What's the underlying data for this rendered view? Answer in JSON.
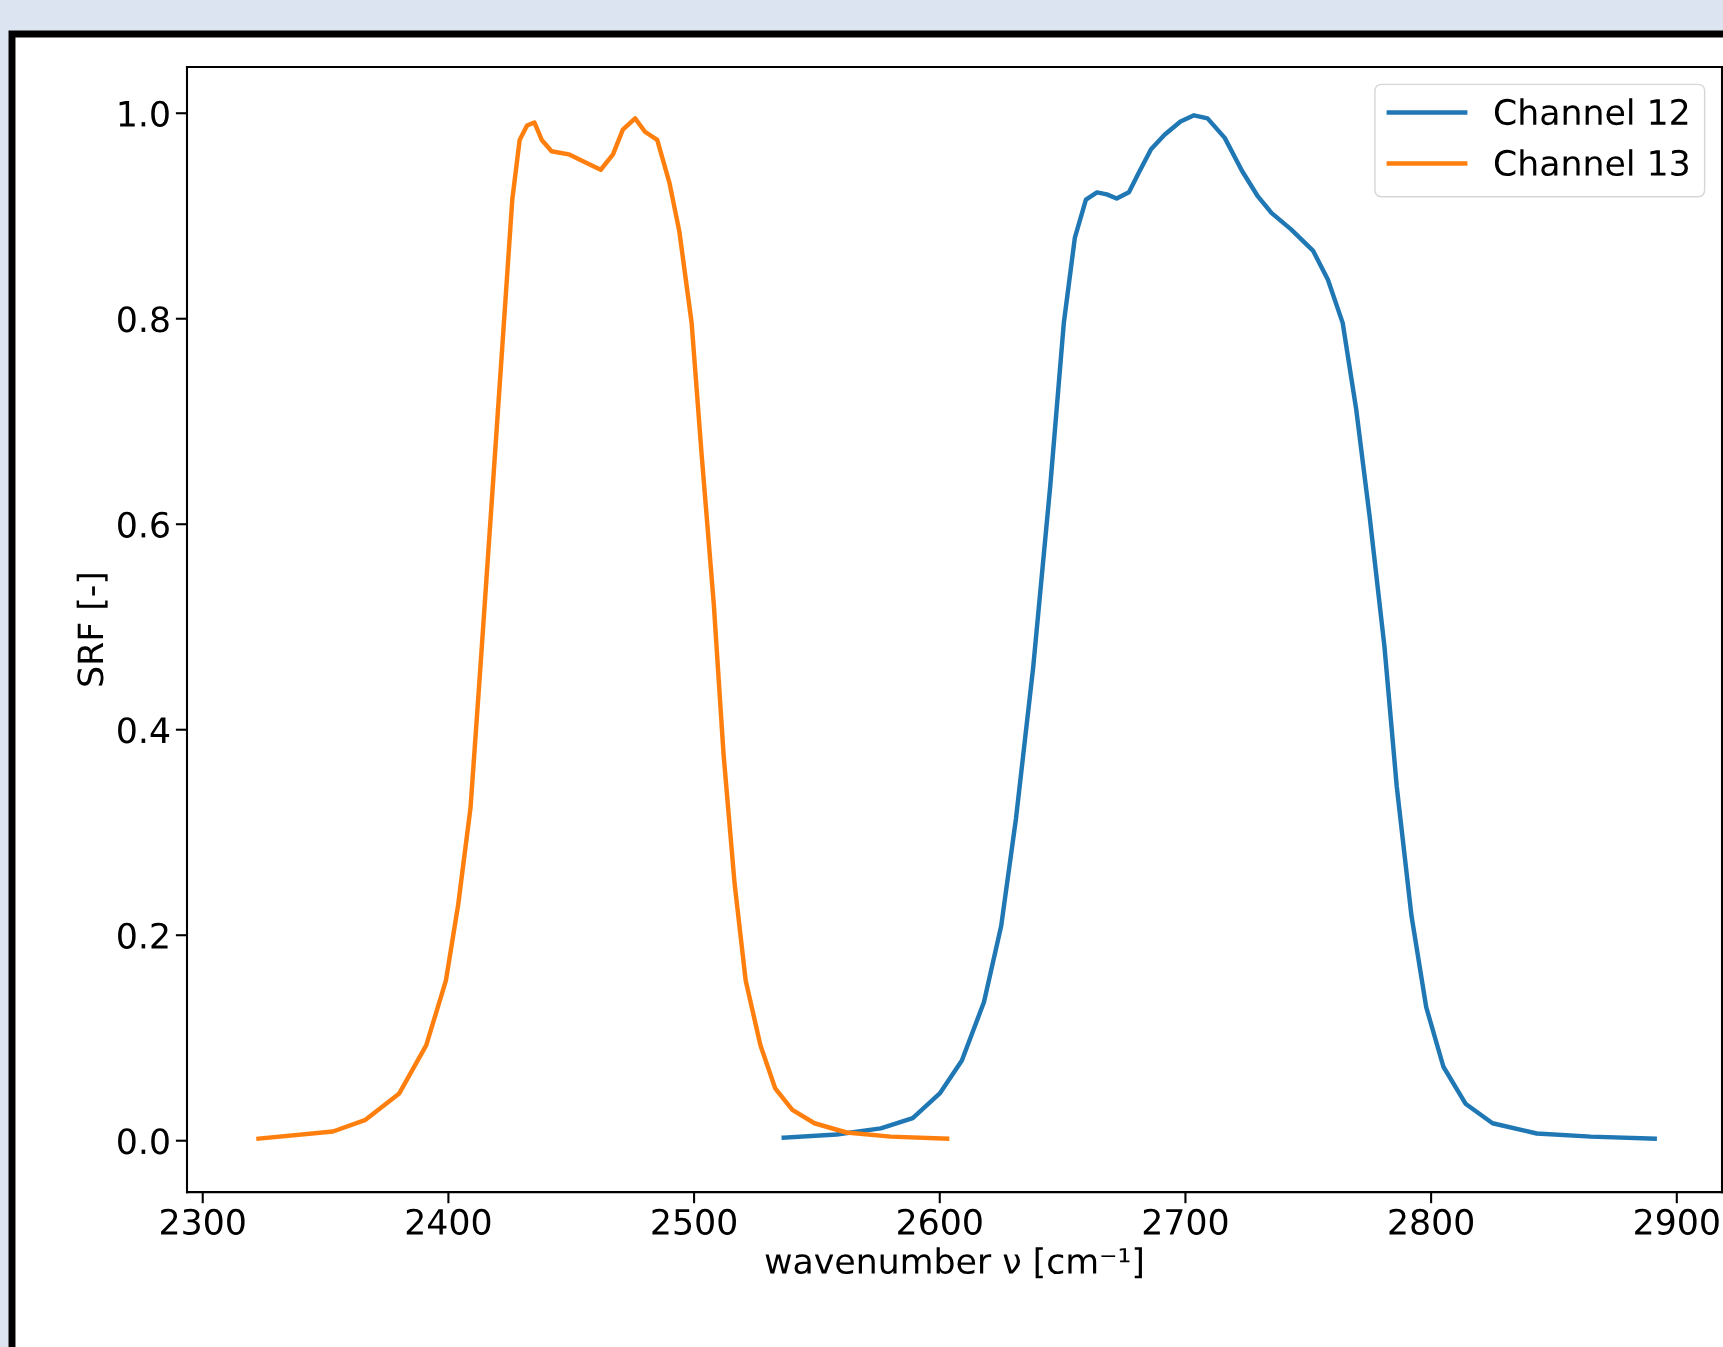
{
  "chart_data": {
    "type": "line",
    "xlabel": "wavenumber ν [cm⁻¹]",
    "ylabel": "SRF [-]",
    "legend": "top right",
    "grid": false,
    "xlim": [
      2293.6,
      2918.4
    ],
    "ylim": [
      -0.05,
      1.045
    ],
    "xticks": [
      2300,
      2400,
      2500,
      2600,
      2700,
      2800,
      2900
    ],
    "yticks": [
      {
        "value": 0,
        "label": "0.0"
      },
      {
        "value": 0.2,
        "label": "0.2"
      },
      {
        "value": 0.4,
        "label": "0.4"
      },
      {
        "value": 0.6,
        "label": "0.6"
      },
      {
        "value": 0.8,
        "label": "0.8"
      },
      {
        "value": 1.0,
        "label": "1.0"
      }
    ],
    "series": [
      {
        "name": "Channel 12",
        "color": "#1f77b4",
        "x": [
          2536.5,
          2558,
          2576,
          2589,
          2600,
          2609,
          2618,
          2625,
          2631,
          2638,
          2645,
          2650.5,
          2655,
          2659.5,
          2664,
          2668,
          2672,
          2677,
          2681,
          2686,
          2691.5,
          2698,
          2703.5,
          2709,
          2716,
          2723,
          2729.5,
          2735,
          2743,
          2752,
          2758,
          2764,
          2769.5,
          2775,
          2781,
          2786,
          2792,
          2798,
          2805,
          2814,
          2825,
          2843,
          2865,
          2891
        ],
        "values": [
          0.003,
          0.006,
          0.012,
          0.022,
          0.046,
          0.078,
          0.135,
          0.209,
          0.313,
          0.46,
          0.638,
          0.796,
          0.879,
          0.916,
          0.923,
          0.921,
          0.917,
          0.923,
          0.942,
          0.965,
          0.979,
          0.992,
          0.998,
          0.995,
          0.976,
          0.944,
          0.919,
          0.903,
          0.887,
          0.866,
          0.838,
          0.796,
          0.712,
          0.607,
          0.481,
          0.345,
          0.219,
          0.13,
          0.072,
          0.036,
          0.017,
          0.007,
          0.004,
          0.002
        ]
      },
      {
        "name": "Channel 13",
        "color": "#ff7f0e",
        "x": [
          2322.7,
          2353,
          2366,
          2380,
          2391,
          2399,
          2404,
          2409,
          2413,
          2417.5,
          2422,
          2426,
          2429,
          2432,
          2435,
          2438,
          2442,
          2449,
          2455,
          2462,
          2467,
          2471,
          2476,
          2480,
          2485,
          2490,
          2494,
          2499,
          2503,
          2508,
          2512,
          2516.5,
          2521,
          2527,
          2533,
          2540,
          2549,
          2562,
          2580,
          2603
        ],
        "values": [
          0.002,
          0.009,
          0.02,
          0.046,
          0.093,
          0.156,
          0.23,
          0.324,
          0.46,
          0.617,
          0.775,
          0.916,
          0.974,
          0.988,
          0.991,
          0.974,
          0.963,
          0.96,
          0.953,
          0.945,
          0.96,
          0.984,
          0.995,
          0.982,
          0.974,
          0.932,
          0.885,
          0.796,
          0.67,
          0.523,
          0.376,
          0.25,
          0.156,
          0.093,
          0.051,
          0.03,
          0.017,
          0.008,
          0.004,
          0.002
        ]
      }
    ]
  }
}
